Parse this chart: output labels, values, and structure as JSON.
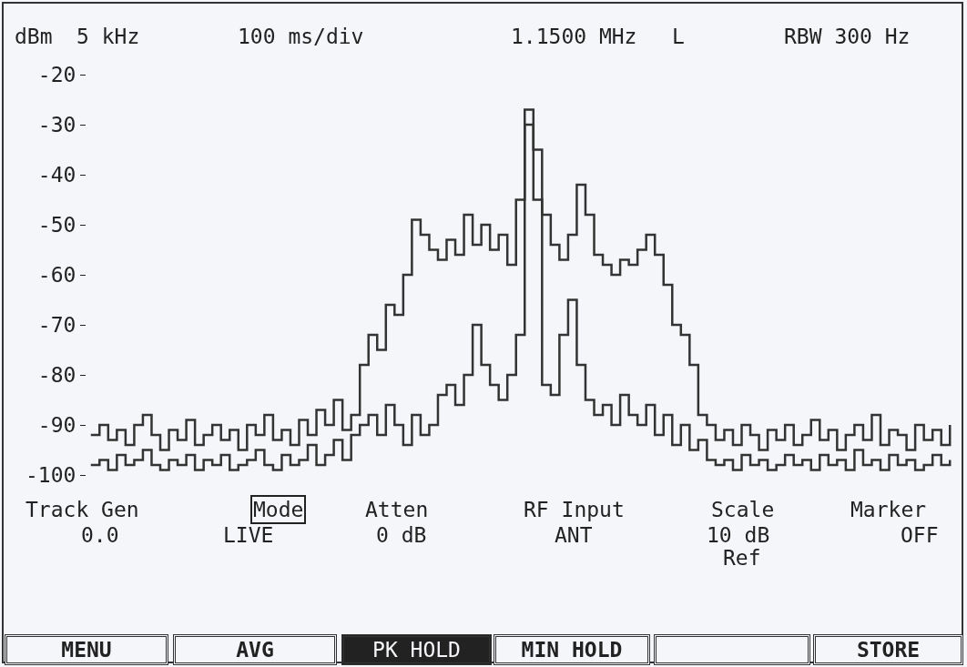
{
  "chart_data": {
    "type": "step",
    "ylabel": "dBm",
    "annotations": [
      "5 kHz",
      "100 ms/div",
      "1.1500 MHz",
      "L",
      "RBW 300 Hz",
      "Track Gen",
      "0.0",
      "Mode",
      "LIVE",
      "Atten",
      "0 dB",
      "RF Input",
      "ANT",
      "Scale",
      "10 dB",
      "Ref",
      "Marker",
      "OFF",
      "MENU",
      "AVG",
      "PK HOLD",
      "MIN HOLD",
      "STORE"
    ],
    "categories": [
      null,
      null,
      null,
      null,
      null,
      null,
      null,
      null,
      null,
      null,
      null,
      null,
      null,
      null,
      null,
      null,
      null,
      null,
      null,
      null,
      null,
      null,
      null,
      null,
      null,
      null,
      null,
      null,
      null,
      null,
      null,
      null,
      null,
      null,
      null,
      null,
      null,
      null,
      null,
      null,
      null,
      null,
      null,
      null,
      null,
      null,
      null,
      null,
      null,
      null,
      null,
      null,
      null,
      null,
      null,
      null,
      null,
      null,
      null,
      null,
      null,
      null,
      null,
      null,
      null,
      null,
      null,
      null,
      null,
      null,
      null,
      null,
      null,
      null,
      null,
      null,
      null,
      null,
      null,
      null,
      null,
      null,
      null,
      null,
      null,
      null,
      null,
      null,
      null,
      null,
      null,
      null,
      null,
      null,
      null,
      null,
      null,
      null,
      null,
      null
    ],
    "series": [
      {
        "color": "#333333",
        "values": [
          -92,
          -90,
          -93,
          -91,
          -94,
          -90,
          -88,
          -92,
          -95,
          -91,
          -93,
          -89,
          -94,
          -92,
          -90,
          -93,
          -91,
          -95,
          -90,
          -92,
          -88,
          -93,
          -91,
          -94,
          -89,
          -92,
          -87,
          -90,
          -85,
          -91,
          -88,
          -78,
          -72,
          -75,
          -66,
          -68,
          -60,
          -49,
          -52,
          -55,
          -57,
          -53,
          -56,
          -48,
          -54,
          -50,
          -55,
          -52,
          -58,
          -45,
          -27,
          -35,
          -48,
          -54,
          -57,
          -52,
          -42,
          -48,
          -56,
          -58,
          -60,
          -57,
          -58,
          -55,
          -52,
          -56,
          -62,
          -70,
          -72,
          -78,
          -88,
          -90,
          -93,
          -91,
          -94,
          -90,
          -92,
          -95,
          -91,
          -93,
          -90,
          -94,
          -92,
          -89,
          -93,
          -91,
          -95,
          -92,
          -90,
          -93,
          -88,
          -94,
          -91,
          -92,
          -95,
          -90,
          -93,
          -91,
          -94,
          -90
        ]
      },
      {
        "color": "#333333",
        "values": [
          -98,
          -97,
          -99,
          -96,
          -98,
          -97,
          -95,
          -98,
          -99,
          -97,
          -98,
          -96,
          -99,
          -97,
          -98,
          -96,
          -99,
          -98,
          -97,
          -95,
          -98,
          -99,
          -96,
          -98,
          -97,
          -94,
          -98,
          -96,
          -93,
          -97,
          -92,
          -90,
          -88,
          -92,
          -86,
          -90,
          -94,
          -88,
          -92,
          -90,
          -84,
          -82,
          -86,
          -80,
          -70,
          -78,
          -82,
          -85,
          -80,
          -72,
          -30,
          -45,
          -82,
          -84,
          -72,
          -65,
          -78,
          -85,
          -88,
          -86,
          -90,
          -84,
          -88,
          -90,
          -86,
          -92,
          -88,
          -94,
          -90,
          -95,
          -93,
          -97,
          -98,
          -97,
          -99,
          -96,
          -98,
          -97,
          -99,
          -98,
          -96,
          -98,
          -97,
          -99,
          -96,
          -98,
          -97,
          -99,
          -95,
          -98,
          -97,
          -99,
          -96,
          -98,
          -97,
          -99,
          -98,
          -96,
          -98,
          -97
        ]
      }
    ],
    "ylim": [
      -100,
      -20
    ],
    "yticks": [
      -20,
      -30,
      -40,
      -50,
      -60,
      -70,
      -80,
      -90,
      -100
    ],
    "line_style": "solid"
  }
}
